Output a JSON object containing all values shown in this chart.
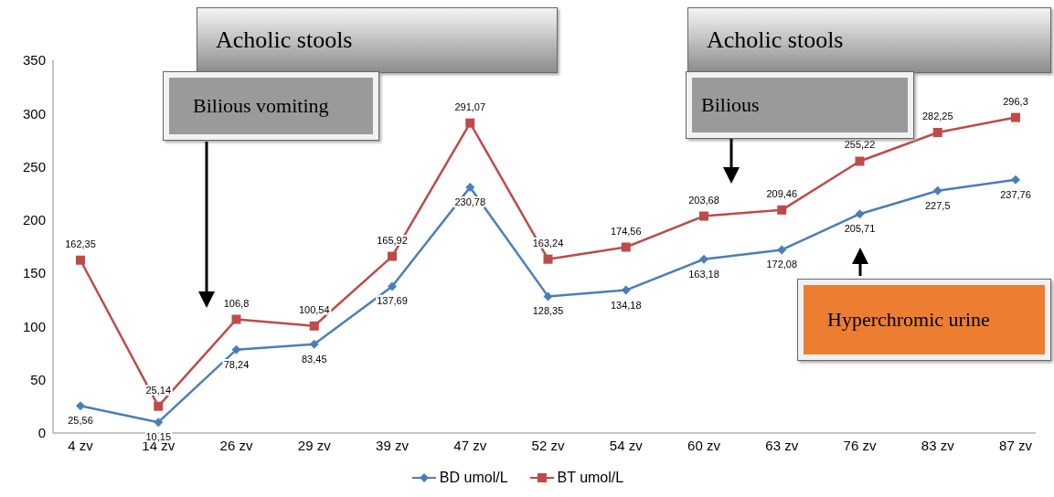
{
  "chart_data": {
    "type": "line",
    "categories": [
      "4 zv",
      "14 zv",
      "26 zv",
      "29 zv",
      "39 zv",
      "47 zv",
      "52 zv",
      "54 zv",
      "60 zv",
      "63 zv",
      "76 zv",
      "83 zv",
      "87 zv"
    ],
    "series": [
      {
        "name": "BD umol/L",
        "color": "#4a7ebb",
        "marker": "diamond",
        "values": [
          25.56,
          10.15,
          78.24,
          83.45,
          137.69,
          230.78,
          128.35,
          134.18,
          163.18,
          172.08,
          205.71,
          227.5,
          237.76
        ],
        "value_labels": [
          "25,56",
          "10,15",
          "78,24",
          "83,45",
          "137,69",
          "230,78",
          "128,35",
          "134,18",
          "163,18",
          "172,08",
          "205,71",
          "227,5",
          "237,76"
        ]
      },
      {
        "name": "BT umol/L",
        "color": "#be4b48",
        "marker": "square",
        "values": [
          162.35,
          25.14,
          106.8,
          100.54,
          165.92,
          291.07,
          163.24,
          174.56,
          203.68,
          209.46,
          255.22,
          282.25,
          296.3
        ],
        "value_labels": [
          "162,35",
          "25,14",
          "106,8",
          "100,54",
          "165,92",
          "291,07",
          "163,24",
          "174,56",
          "203,68",
          "209,46",
          "255,22",
          "282,25",
          "296,3"
        ]
      }
    ],
    "ylim": [
      0,
      350
    ],
    "yticks": [
      0,
      50,
      100,
      150,
      200,
      250,
      300,
      350
    ],
    "grid": false,
    "legend": "bottom",
    "line_style": "solid",
    "annotations": [
      "Acholic stools",
      "Bilious vomiting",
      "Acholic stools",
      "Bilious",
      "Hyperchromic urine"
    ]
  }
}
